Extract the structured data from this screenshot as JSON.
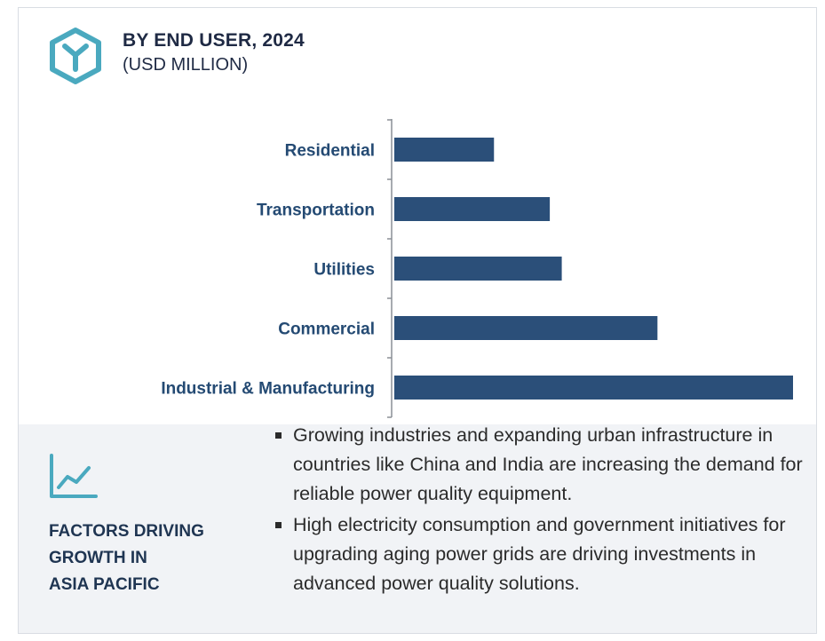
{
  "header": {
    "title": "BY END USER, 2024",
    "subtitle": "(USD MILLION)"
  },
  "colors": {
    "bar": "#2b4f79",
    "accent_teal": "#4aa9bf",
    "axis": "#8a8f96",
    "panel_bg": "#f1f3f6"
  },
  "icons": {
    "logo": "hexagon-y-logo-icon",
    "growth": "line-chart-growth-icon"
  },
  "chart_data": {
    "type": "bar",
    "orientation": "horizontal",
    "categories": [
      "Residential",
      "Transportation",
      "Utilities",
      "Commercial",
      "Industrial & Manufacturing"
    ],
    "values": [
      25,
      39,
      42,
      66,
      100
    ],
    "xlim": [
      0,
      100
    ],
    "grid": false,
    "legend": "none"
  },
  "factors": {
    "title_lines": [
      "FACTORS DRIVING",
      "GROWTH IN",
      "ASIA PACIFIC"
    ],
    "bullets": [
      "Growing industries and expanding urban infrastructure in countries like China and India are increasing the demand for reliable power quality equipment.",
      "High electricity consumption and government initiatives for upgrading aging power grids are driving investments in advanced power quality solutions."
    ]
  }
}
